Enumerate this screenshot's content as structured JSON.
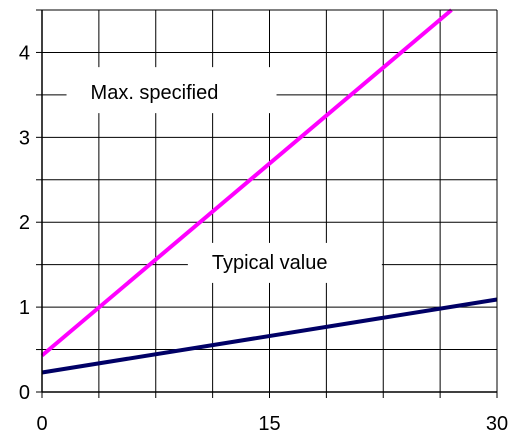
{
  "chart_data": {
    "type": "line",
    "title": "",
    "xlabel": "",
    "ylabel": "",
    "xlim": [
      0,
      30
    ],
    "ylim": [
      0,
      4.5
    ],
    "x_ticks": [
      0,
      15,
      30
    ],
    "x_tick_labels": [
      "0",
      "15",
      "30"
    ],
    "y_ticks": [
      0,
      1,
      2,
      3,
      4
    ],
    "y_tick_labels": [
      "0",
      "1",
      "2",
      "3",
      "4"
    ],
    "grid": true,
    "series": [
      {
        "name": "Max. specified",
        "color": "#ff00ff",
        "x": [
          0,
          27
        ],
        "y": [
          0.43,
          4.5
        ]
      },
      {
        "name": "Typical value",
        "color": "#000066",
        "x": [
          0,
          30
        ],
        "y": [
          0.23,
          1.09
        ]
      }
    ],
    "annotations": [
      {
        "text": "Max. specified",
        "x": 3.2,
        "y": 3.45
      },
      {
        "text": "Typical value",
        "x": 11.2,
        "y": 1.45
      }
    ]
  }
}
